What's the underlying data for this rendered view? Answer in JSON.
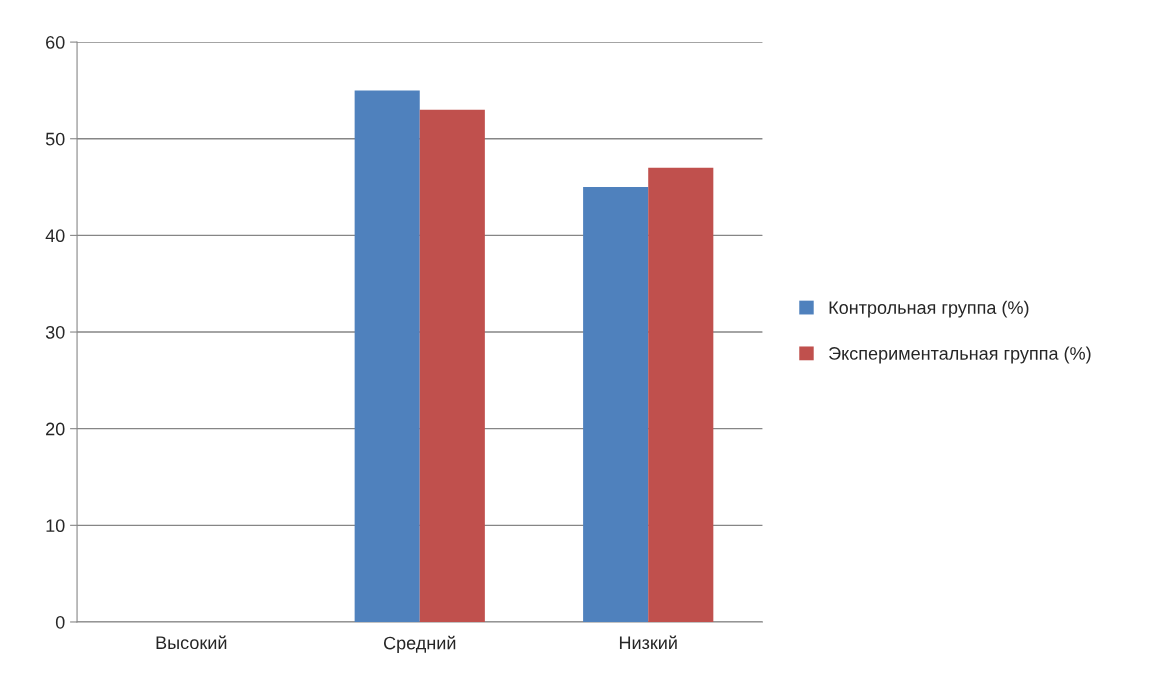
{
  "chart_data": {
    "type": "bar",
    "categories": [
      "Высокий",
      "Средний",
      "Низкий"
    ],
    "series": [
      {
        "name": "Контрольная группа (%)",
        "color": "#4f81bd",
        "values": [
          0,
          55,
          45
        ]
      },
      {
        "name": "Экспериментальная группа (%)",
        "color": "#c0504d",
        "values": [
          0,
          53,
          47
        ]
      }
    ],
    "ylim": [
      0,
      60
    ],
    "yticks": [
      0,
      10,
      20,
      30,
      40,
      50,
      60
    ],
    "grid": "y",
    "legend": "right"
  }
}
